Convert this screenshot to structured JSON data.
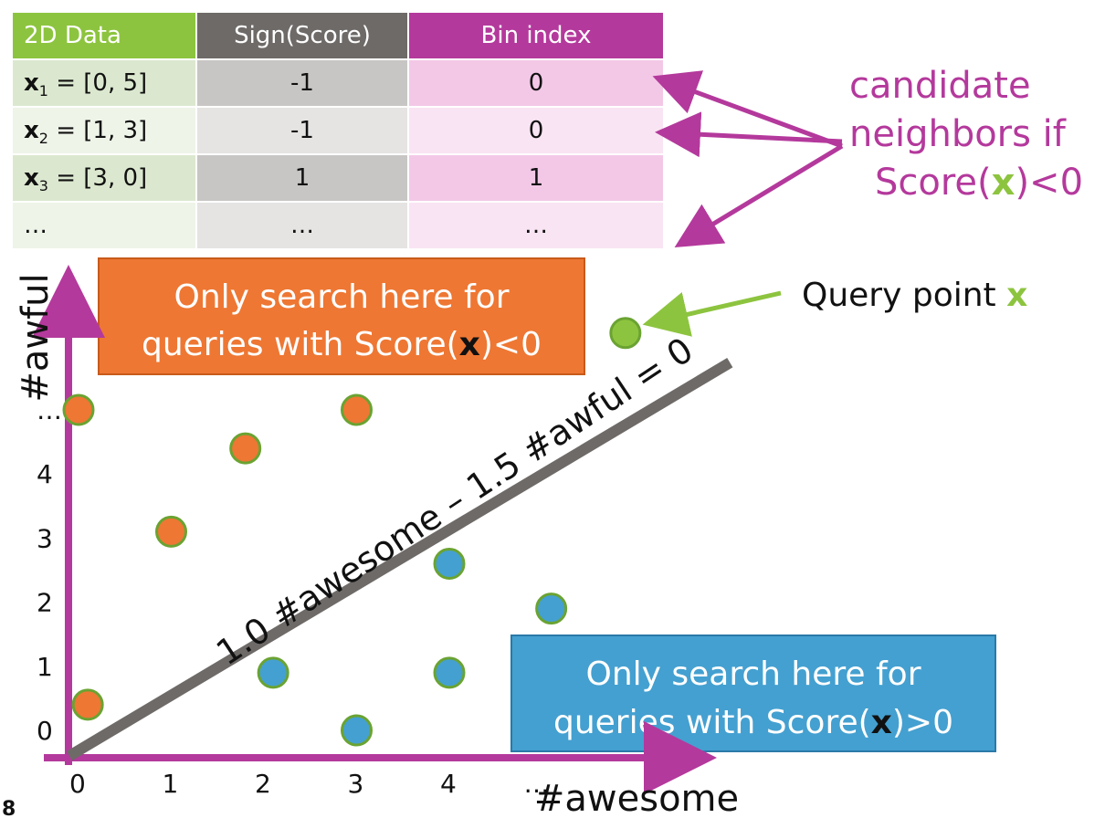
{
  "table": {
    "headers": [
      "2D Data",
      "Sign(Score)",
      "Bin index"
    ],
    "rows": [
      {
        "var": "x",
        "sub": "1",
        "value": " = [0, 5]",
        "sign": "-1",
        "bin": "0"
      },
      {
        "var": "x",
        "sub": "2",
        "value": " = [1, 3]",
        "sign": "-1",
        "bin": "0"
      },
      {
        "var": "x",
        "sub": "3",
        "value": " = [3, 0]",
        "sign": "1",
        "bin": "1"
      },
      {
        "var": "",
        "sub": "",
        "value": "…",
        "sign": "…",
        "bin": "…"
      }
    ]
  },
  "callout_neighbors": {
    "line1": "candidate",
    "line2": "neighbors if",
    "line3_pre": "Score(",
    "line3_var": "x",
    "line3_post": ")<0"
  },
  "query_label": {
    "text": "Query point ",
    "var": "x"
  },
  "box_negative": {
    "line1": "Only search here for",
    "line2_pre": "queries with Score(",
    "line2_var": "x",
    "line2_post": ")<0"
  },
  "box_positive": {
    "line1": "Only search here for",
    "line2_pre": "queries with Score(",
    "line2_var": "x",
    "line2_post": ")>0"
  },
  "line_label": "1.0 #awesome – 1.5 #awful = 0",
  "axes": {
    "xlabel": "#awesome",
    "ylabel": "#awful",
    "xticks": [
      "0",
      "1",
      "2",
      "3",
      "4",
      "…"
    ],
    "yticks": [
      "0",
      "1",
      "2",
      "3",
      "4",
      "…"
    ]
  },
  "page_number": "8",
  "colors": {
    "orange": "#ee7733",
    "blue": "#44a0d0",
    "green": "#8dc43f",
    "magenta": "#b4399c",
    "gray": "#6e6a68",
    "point_border": "#6aa332"
  },
  "chart_data": {
    "type": "scatter",
    "xlabel": "#awesome",
    "ylabel": "#awful",
    "series": [
      {
        "name": "",
        "color": "#ee7733",
        "x": [
          0.1,
          1,
          1.8,
          3,
          0
        ],
        "y": [
          0.4,
          3.1,
          4.4,
          5,
          5
        ]
      },
      {
        "name": "",
        "color": "#44a0d0",
        "x": [
          2.1,
          4,
          4,
          3,
          5.1
        ],
        "y": [
          0.9,
          2.6,
          0.9,
          0,
          1.9
        ]
      },
      {
        "name": "",
        "color": "#8dc43f",
        "x": [
          5.9
        ],
        "y": [
          6.2
        ]
      }
    ],
    "line": {
      "x": [
        0,
        6.2
      ],
      "y": [
        0,
        4.1
      ]
    }
  }
}
